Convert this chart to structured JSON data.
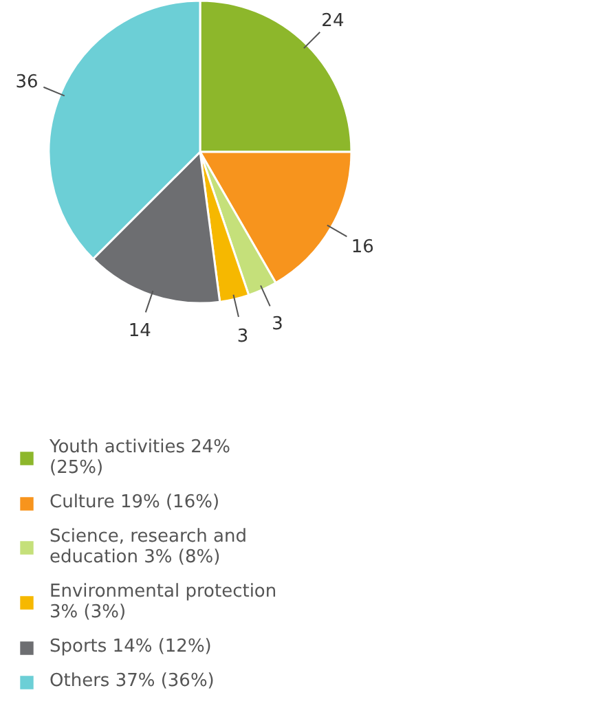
{
  "chart_data": {
    "type": "pie",
    "categories": [
      "Youth activities 24% (25%)",
      "Culture 19% (16%)",
      "Science, research and education 3% (8%)",
      "Environmental protection 3% (3%)",
      "Sports 14% (12%)",
      "Others 37% (36%)"
    ],
    "values": [
      24,
      16,
      3,
      3,
      14,
      36
    ],
    "colors": [
      "#8db72b",
      "#f7941d",
      "#c5e07a",
      "#f6b800",
      "#6d6e71",
      "#6ccfd6"
    ],
    "data_labels": true,
    "legend": "bottom"
  }
}
